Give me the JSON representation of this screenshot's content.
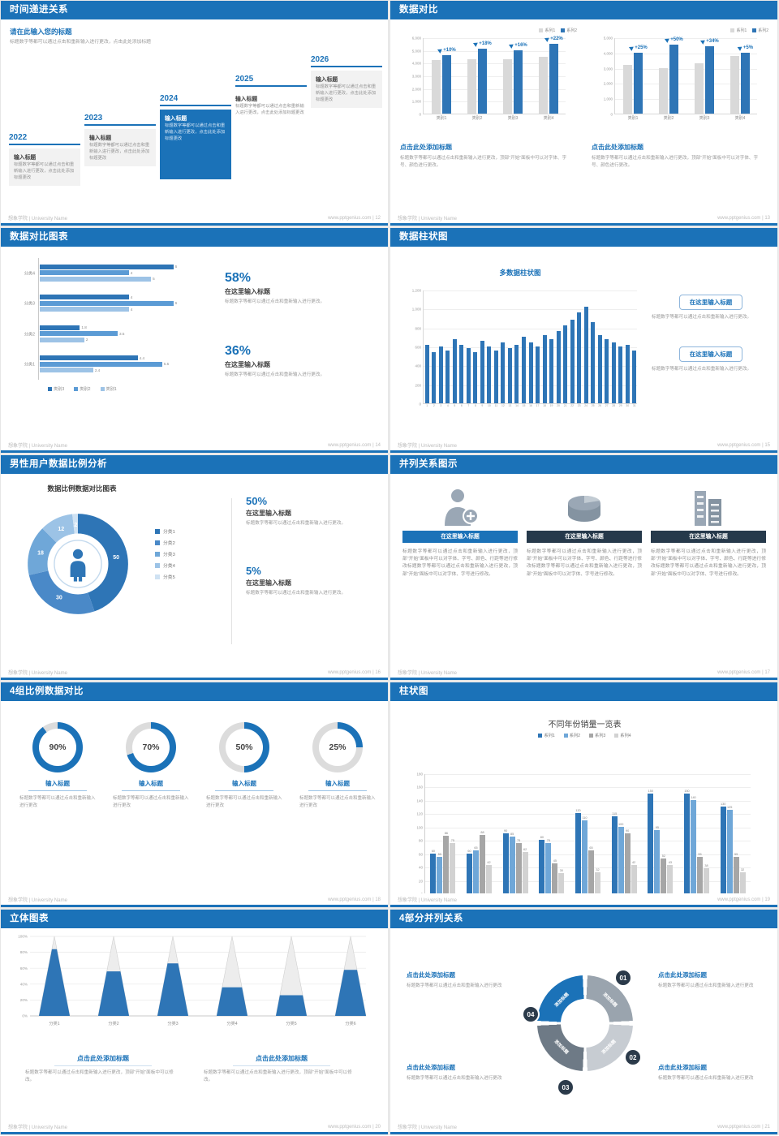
{
  "accent": "#1B72B8",
  "footer_brand": "想象学院 | University Name",
  "slides": {
    "s12": {
      "title": "时间递进关系",
      "page_label": "www.pptgenius.com | 12",
      "heading": "请在此输入您的标题",
      "subtext": "标题数字等都可以通过点击和重新输入进行更改，点击此处添加标题",
      "item_label": "输入标题",
      "item_body": "标题数字等都可以通过点击和重新输入进行更改，点击此处添加标题更改",
      "years": [
        "2022",
        "2023",
        "2024",
        "2025",
        "2026"
      ],
      "highlight": 2
    },
    "s13": {
      "title": "数据对比",
      "page_label": "www.pptgenius.com | 13",
      "legend": [
        "系列1",
        "系列2"
      ],
      "colors": [
        "#D9D9D9",
        "#2E75B6"
      ],
      "caption_title": "点击此处添加标题",
      "caption_body": "标题数字等都可以通过点击和重新输入进行更改，顶部“开始”面板中可以对字体、字号、颜色进行更改。",
      "chart_left": {
        "type": "bar",
        "categories": [
          "类别1",
          "类别2",
          "类别3",
          "类别4"
        ],
        "series1": [
          4200,
          4300,
          4300,
          4500
        ],
        "series2": [
          4600,
          5100,
          5000,
          5500
        ],
        "deltas": [
          "+10%",
          "+18%",
          "+16%",
          "+22%"
        ],
        "ymax": 6000,
        "yticks": [
          "6,000",
          "5,000",
          "4,000",
          "3,000",
          "2,000",
          "1,000",
          "0"
        ]
      },
      "chart_right": {
        "type": "bar",
        "categories": [
          "类别1",
          "类别2",
          "类别3",
          "类别4"
        ],
        "series1": [
          3200,
          3000,
          3300,
          3800
        ],
        "series2": [
          4000,
          4500,
          4400,
          4000
        ],
        "deltas": [
          "+25%",
          "+50%",
          "+34%",
          "+5%"
        ],
        "ymax": 5000,
        "yticks": [
          "5,000",
          "4,000",
          "3,000",
          "2,000",
          "1,000",
          "0"
        ]
      }
    },
    "s14": {
      "title": "数据对比图表",
      "page_label": "www.pptgenius.com | 14",
      "chart": {
        "type": "bar-horizontal",
        "categories": [
          "分类4",
          "分类3",
          "分类2",
          "分类1"
        ],
        "legend": [
          "类别3",
          "类别2",
          "类别1"
        ],
        "colors": [
          "#2E75B6",
          "#5B9BD5",
          "#9DC3E6"
        ],
        "values": [
          [
            6,
            4,
            5
          ],
          [
            4,
            6,
            4
          ],
          [
            1.8,
            3.5,
            2
          ],
          [
            4.4,
            5.5,
            2.4
          ]
        ],
        "xmax": 7
      },
      "stats": [
        {
          "pct": "58%",
          "head": "在这里输入标题",
          "body": "标题数字等都可以通过点击和重新输入进行更改。"
        },
        {
          "pct": "36%",
          "head": "在这里输入标题",
          "body": "标题数字等都可以通过点击和重新输入进行更改。"
        }
      ]
    },
    "s15": {
      "title": "数据柱状图",
      "page_label": "www.pptgenius.com | 15",
      "chart": {
        "type": "bar",
        "title": "多数据柱状图",
        "values": [
          620,
          540,
          600,
          560,
          680,
          620,
          580,
          540,
          660,
          600,
          560,
          640,
          580,
          620,
          700,
          640,
          600,
          720,
          680,
          760,
          820,
          880,
          960,
          1020,
          860,
          720,
          680,
          640,
          600,
          620,
          560
        ],
        "ymax": 1200,
        "yticks": [
          "1,200",
          "1,000",
          "800",
          "600",
          "400",
          "200",
          "0"
        ]
      },
      "blocks": [
        {
          "head": "在这里输入标题",
          "body": "标题数字等都可以通过点击和重新输入进行更改。"
        },
        {
          "head": "在这里输入标题",
          "body": "标题数字等都可以通过点击和重新输入进行更改。"
        }
      ]
    },
    "s16": {
      "title": "男性用户数据比例分析",
      "page_label": "www.pptgenius.com | 16",
      "chart_heading": "数据比例数据对比图表",
      "donut": {
        "type": "donut",
        "values": [
          50,
          30,
          18,
          12,
          2
        ],
        "labels": [
          "50",
          "30",
          "18",
          "12",
          "2"
        ],
        "colors": [
          "#2E75B6",
          "#4A89C8",
          "#6FA7D8",
          "#9CC3E6",
          "#CFE2F3"
        ],
        "legend": [
          "分类1",
          "分类2",
          "分类3",
          "分类4",
          "分类5"
        ]
      },
      "stats": [
        {
          "pct": "50%",
          "head": "在这里输入标题",
          "body": "标题数字等都可以通过点击和重新输入进行更改。"
        },
        {
          "pct": "5%",
          "head": "在这里输入标题",
          "body": "标题数字等都可以通过点击和重新输入进行更改。"
        }
      ]
    },
    "s17": {
      "title": "并列关系图示",
      "page_label": "www.pptgenius.com | 17",
      "header_label": "在这里输入标题",
      "header_colors": [
        "#1B72B8",
        "#26394B",
        "#26394B"
      ],
      "body": "标题数字等都可以通过点击和重新输入进行更改，顶部“开始”面板中可以对字体、字号、颜色、行距等进行修改标题数字等都可以通过点击和重新输入进行更改，顶部“开始”面板中可以对字体、字号进行修改。",
      "columns": [
        {
          "icon": "medical"
        },
        {
          "icon": "pie"
        },
        {
          "icon": "building"
        }
      ]
    },
    "s18": {
      "title": "4组比例数据对比",
      "page_label": "www.pptgenius.com | 18",
      "item_label": "输入标题",
      "item_body": "标题数字等都可以通过点击和重新输入进行更改",
      "items": [
        {
          "value": 90,
          "label": "90%"
        },
        {
          "value": 70,
          "label": "70%"
        },
        {
          "value": 50,
          "label": "50%"
        },
        {
          "value": 25,
          "label": "25%"
        }
      ]
    },
    "s19": {
      "title": "柱状图",
      "page_label": "www.pptgenius.com | 19",
      "chart": {
        "type": "bar",
        "title": "不同年份销量一览表",
        "legend": [
          "系列1",
          "系列2",
          "系列3",
          "系列4"
        ],
        "colors": [
          "#2E75B6",
          "#6FA7D8",
          "#A6A6A6",
          "#D2D2D2"
        ],
        "categories": [
          "2010",
          "2012",
          "2014",
          "2016",
          "2018",
          "2020",
          "2022",
          "2024",
          "2026"
        ],
        "series": [
          {
            "name": "系列1",
            "values": [
              60,
              60,
              90,
              80,
              120,
              115,
              150,
              150,
              130
            ]
          },
          {
            "name": "系列2",
            "values": [
              55,
              65,
              85,
              75,
              110,
              100,
              95,
              140,
              125
            ]
          },
          {
            "name": "系列3",
            "values": [
              86,
              88,
              75,
              45,
              65,
              90,
              52,
              55,
              55
            ]
          },
          {
            "name": "系列4",
            "values": [
              75,
              42,
              62,
              30,
              32,
              42,
              43,
              38,
              32
            ]
          }
        ],
        "ymax": 180,
        "ystep": 20
      }
    },
    "s20": {
      "title": "立体图表",
      "page_label": "www.pptgenius.com | 20",
      "chart": {
        "type": "cone",
        "yticks": [
          "100%",
          "80%",
          "60%",
          "40%",
          "20%",
          "0%"
        ],
        "categories": [
          "分类1",
          "分类2",
          "分类3",
          "分类4",
          "分类5",
          "分类6"
        ],
        "fills": [
          84,
          56,
          66,
          36,
          26,
          58
        ]
      },
      "captions": [
        {
          "head": "点击此处添加标题",
          "body": "标题数字等都可以通过点击和重新输入进行更改，顶部“开始”面板中可以修改。"
        },
        {
          "head": "点击此处添加标题",
          "body": "标题数字等都可以通过点击和重新输入进行更改，顶部“开始”面板中可以修改。"
        }
      ]
    },
    "s21": {
      "title": "4部分并列关系",
      "page_label": "www.pptgenius.com | 21",
      "seg_label": "添加标题",
      "seg_colors": [
        "#9AA4AE",
        "#C7CCD2",
        "#6E7A86",
        "#1B72B8"
      ],
      "badges": [
        "01",
        "02",
        "03",
        "04"
      ],
      "blocks": [
        {
          "head": "点击此处添加标题",
          "body": "标题数字等都可以通过点击和重新输入进行更改"
        },
        {
          "head": "点击此处添加标题",
          "body": "标题数字等都可以通过点击和重新输入进行更改"
        },
        {
          "head": "点击此处添加标题",
          "body": "标题数字等都可以通过点击和重新输入进行更改"
        },
        {
          "head": "点击此处添加标题",
          "body": "标题数字等都可以通过点击和重新输入进行更改"
        }
      ]
    }
  }
}
